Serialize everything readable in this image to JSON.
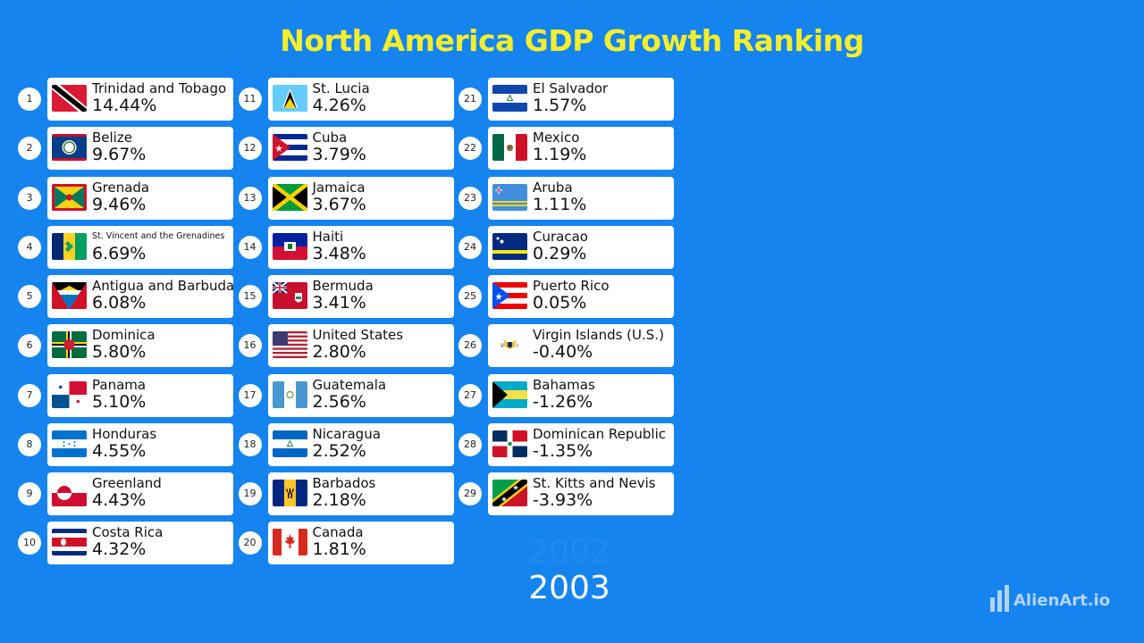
{
  "title": "North America GDP Growth Ranking",
  "year_previous": "2002",
  "year_current": "2003",
  "brand": "AlienArt.io",
  "chart_data": {
    "type": "table",
    "title": "North America GDP Growth Ranking",
    "year": "2003",
    "rows": [
      {
        "rank": "1",
        "country": "Trinidad and Tobago",
        "value": "14.44%",
        "flag": "trinidad-and-tobago"
      },
      {
        "rank": "2",
        "country": "Belize",
        "value": "9.67%",
        "flag": "belize"
      },
      {
        "rank": "3",
        "country": "Grenada",
        "value": "9.46%",
        "flag": "grenada"
      },
      {
        "rank": "4",
        "country": "St. Vincent and the Grenadines",
        "value": "6.69%",
        "flag": "st-vincent"
      },
      {
        "rank": "5",
        "country": "Antigua and Barbuda",
        "value": "6.08%",
        "flag": "antigua"
      },
      {
        "rank": "6",
        "country": "Dominica",
        "value": "5.80%",
        "flag": "dominica"
      },
      {
        "rank": "7",
        "country": "Panama",
        "value": "5.10%",
        "flag": "panama"
      },
      {
        "rank": "8",
        "country": "Honduras",
        "value": "4.55%",
        "flag": "honduras"
      },
      {
        "rank": "9",
        "country": "Greenland",
        "value": "4.43%",
        "flag": "greenland"
      },
      {
        "rank": "10",
        "country": "Costa Rica",
        "value": "4.32%",
        "flag": "costa-rica"
      },
      {
        "rank": "11",
        "country": "St. Lucia",
        "value": "4.26%",
        "flag": "st-lucia"
      },
      {
        "rank": "12",
        "country": "Cuba",
        "value": "3.79%",
        "flag": "cuba"
      },
      {
        "rank": "13",
        "country": "Jamaica",
        "value": "3.67%",
        "flag": "jamaica"
      },
      {
        "rank": "14",
        "country": "Haiti",
        "value": "3.48%",
        "flag": "haiti"
      },
      {
        "rank": "15",
        "country": "Bermuda",
        "value": "3.41%",
        "flag": "bermuda"
      },
      {
        "rank": "16",
        "country": "United States",
        "value": "2.80%",
        "flag": "united-states"
      },
      {
        "rank": "17",
        "country": "Guatemala",
        "value": "2.56%",
        "flag": "guatemala"
      },
      {
        "rank": "18",
        "country": "Nicaragua",
        "value": "2.52%",
        "flag": "nicaragua"
      },
      {
        "rank": "19",
        "country": "Barbados",
        "value": "2.18%",
        "flag": "barbados"
      },
      {
        "rank": "20",
        "country": "Canada",
        "value": "1.81%",
        "flag": "canada"
      },
      {
        "rank": "21",
        "country": "El Salvador",
        "value": "1.57%",
        "flag": "el-salvador"
      },
      {
        "rank": "22",
        "country": "Mexico",
        "value": "1.19%",
        "flag": "mexico"
      },
      {
        "rank": "23",
        "country": "Aruba",
        "value": "1.11%",
        "flag": "aruba"
      },
      {
        "rank": "24",
        "country": "Curacao",
        "value": "0.29%",
        "flag": "curacao"
      },
      {
        "rank": "25",
        "country": "Puerto Rico",
        "value": "0.05%",
        "flag": "puerto-rico"
      },
      {
        "rank": "26",
        "country": "Virgin Islands (U.S.)",
        "value": "-0.40%",
        "flag": "us-virgin-islands"
      },
      {
        "rank": "27",
        "country": "Bahamas",
        "value": "-1.26%",
        "flag": "bahamas"
      },
      {
        "rank": "28",
        "country": "Dominican Republic",
        "value": "-1.35%",
        "flag": "dominican-republic"
      },
      {
        "rank": "29",
        "country": "St. Kitts and Nevis",
        "value": "-3.93%",
        "flag": "st-kitts-and-nevis"
      }
    ]
  }
}
